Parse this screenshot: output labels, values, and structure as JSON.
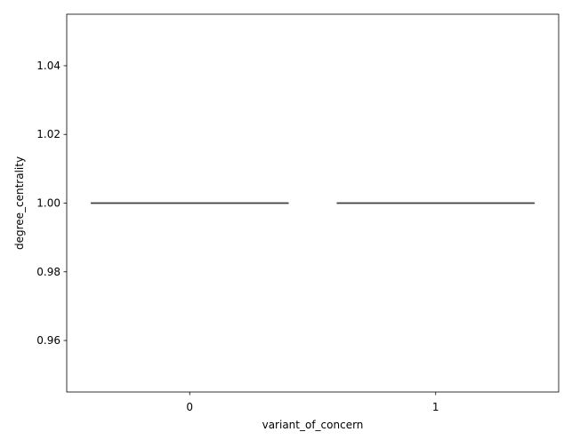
{
  "chart_data": {
    "type": "box",
    "title": "",
    "xlabel": "variant_of_concern",
    "ylabel": "degree_centrality",
    "categories": [
      "0",
      "1"
    ],
    "ylim": [
      0.945,
      1.055
    ],
    "yticks": [
      0.96,
      0.98,
      1.0,
      1.02,
      1.04
    ],
    "ytick_labels": [
      "0.96",
      "0.98",
      "1.00",
      "1.02",
      "1.04"
    ],
    "boxes": [
      {
        "category": "0",
        "min": 1.0,
        "q1": 1.0,
        "median": 1.0,
        "q3": 1.0,
        "max": 1.0
      },
      {
        "category": "1",
        "min": 1.0,
        "q1": 1.0,
        "median": 1.0,
        "q3": 1.0,
        "max": 1.0
      }
    ],
    "grid": false,
    "colors": {
      "box_line": "#3f3f3f",
      "axes": "#000000",
      "background": "#ffffff"
    }
  }
}
